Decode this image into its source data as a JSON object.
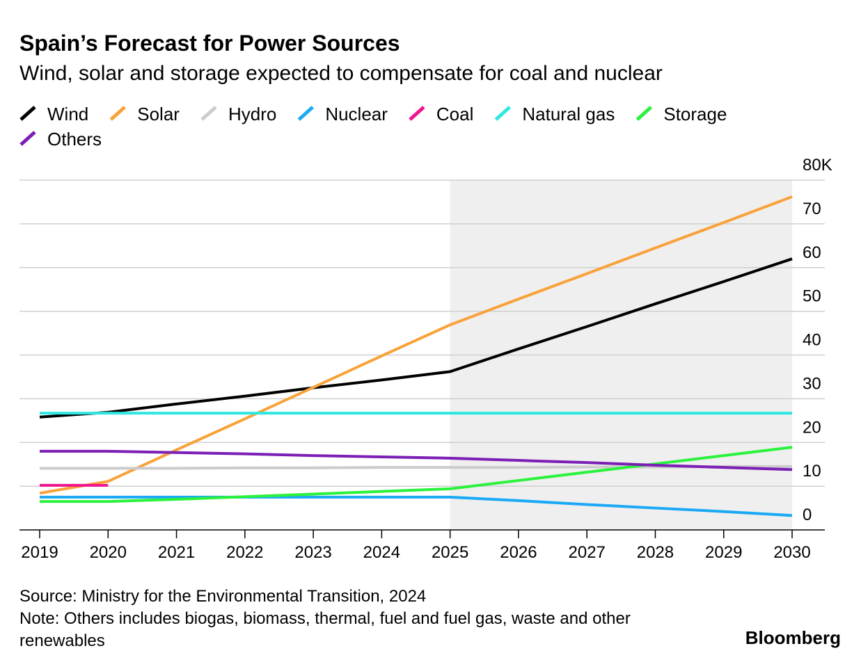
{
  "chart_data": {
    "type": "line",
    "title": "Spain’s Forecast for Power Sources",
    "subtitle": "Wind, solar and storage expected to compensate for coal and nuclear",
    "x": [
      2019,
      2020,
      2021,
      2022,
      2023,
      2024,
      2025,
      2026,
      2027,
      2028,
      2029,
      2030
    ],
    "xlim": [
      2018.705,
      2030.478
    ],
    "xticks": [
      2019,
      2020,
      2021,
      2022,
      2023,
      2024,
      2025,
      2026,
      2027,
      2028,
      2029,
      2030
    ],
    "ylim": [
      0,
      80
    ],
    "yticks": [
      0,
      10,
      20,
      30,
      40,
      50,
      60,
      70,
      {
        "value": 80,
        "label": "80K"
      }
    ],
    "grid": true,
    "shade": [
      2025,
      2030
    ],
    "series": [
      {
        "name": "Wind",
        "color": "#000000",
        "values": [
          25.8,
          26.9,
          28.8,
          30.6,
          32.5,
          34.3,
          36.2,
          41.4,
          46.5,
          51.7,
          56.8,
          62.0
        ]
      },
      {
        "name": "Solar",
        "color": "#f9a23a",
        "values": [
          8.4,
          11.1,
          18.3,
          25.4,
          32.6,
          39.8,
          46.9,
          52.8,
          58.6,
          64.5,
          70.3,
          76.2
        ]
      },
      {
        "name": "Hydro",
        "color": "#cccccc",
        "values": [
          14.1,
          14.1,
          14.1,
          14.2,
          14.2,
          14.3,
          14.3,
          14.3,
          14.4,
          14.4,
          14.5,
          14.5
        ]
      },
      {
        "name": "Nuclear",
        "color": "#1ba9f5",
        "values": [
          7.5,
          7.5,
          7.5,
          7.5,
          7.5,
          7.5,
          7.5,
          6.7,
          5.8,
          5.0,
          4.2,
          3.3
        ]
      },
      {
        "name": "Coal",
        "color": "#f0148c",
        "values": [
          10.2,
          10.2,
          null,
          null,
          null,
          null,
          null,
          null,
          null,
          null,
          null,
          null
        ]
      },
      {
        "name": "Natural gas",
        "color": "#2ee8e0",
        "values": [
          26.7,
          26.7,
          26.7,
          26.7,
          26.7,
          26.7,
          26.7,
          26.7,
          26.7,
          26.7,
          26.7,
          26.7
        ]
      },
      {
        "name": "Storage",
        "color": "#2bf23c",
        "values": [
          6.5,
          6.5,
          7.0,
          7.6,
          8.2,
          8.8,
          9.4,
          11.3,
          13.2,
          15.1,
          17.0,
          18.9
        ]
      },
      {
        "name": "Others",
        "color": "#7b1fb5",
        "values": [
          18.0,
          18.0,
          17.7,
          17.4,
          17.0,
          16.7,
          16.4,
          15.9,
          15.4,
          14.8,
          14.3,
          13.8
        ]
      }
    ],
    "source": "Source: Ministry for the Environmental Transition, 2024",
    "note": "Note: Others includes biogas, biomass, thermal, fuel and fuel gas, waste and other renewables",
    "brand": "Bloomberg"
  }
}
